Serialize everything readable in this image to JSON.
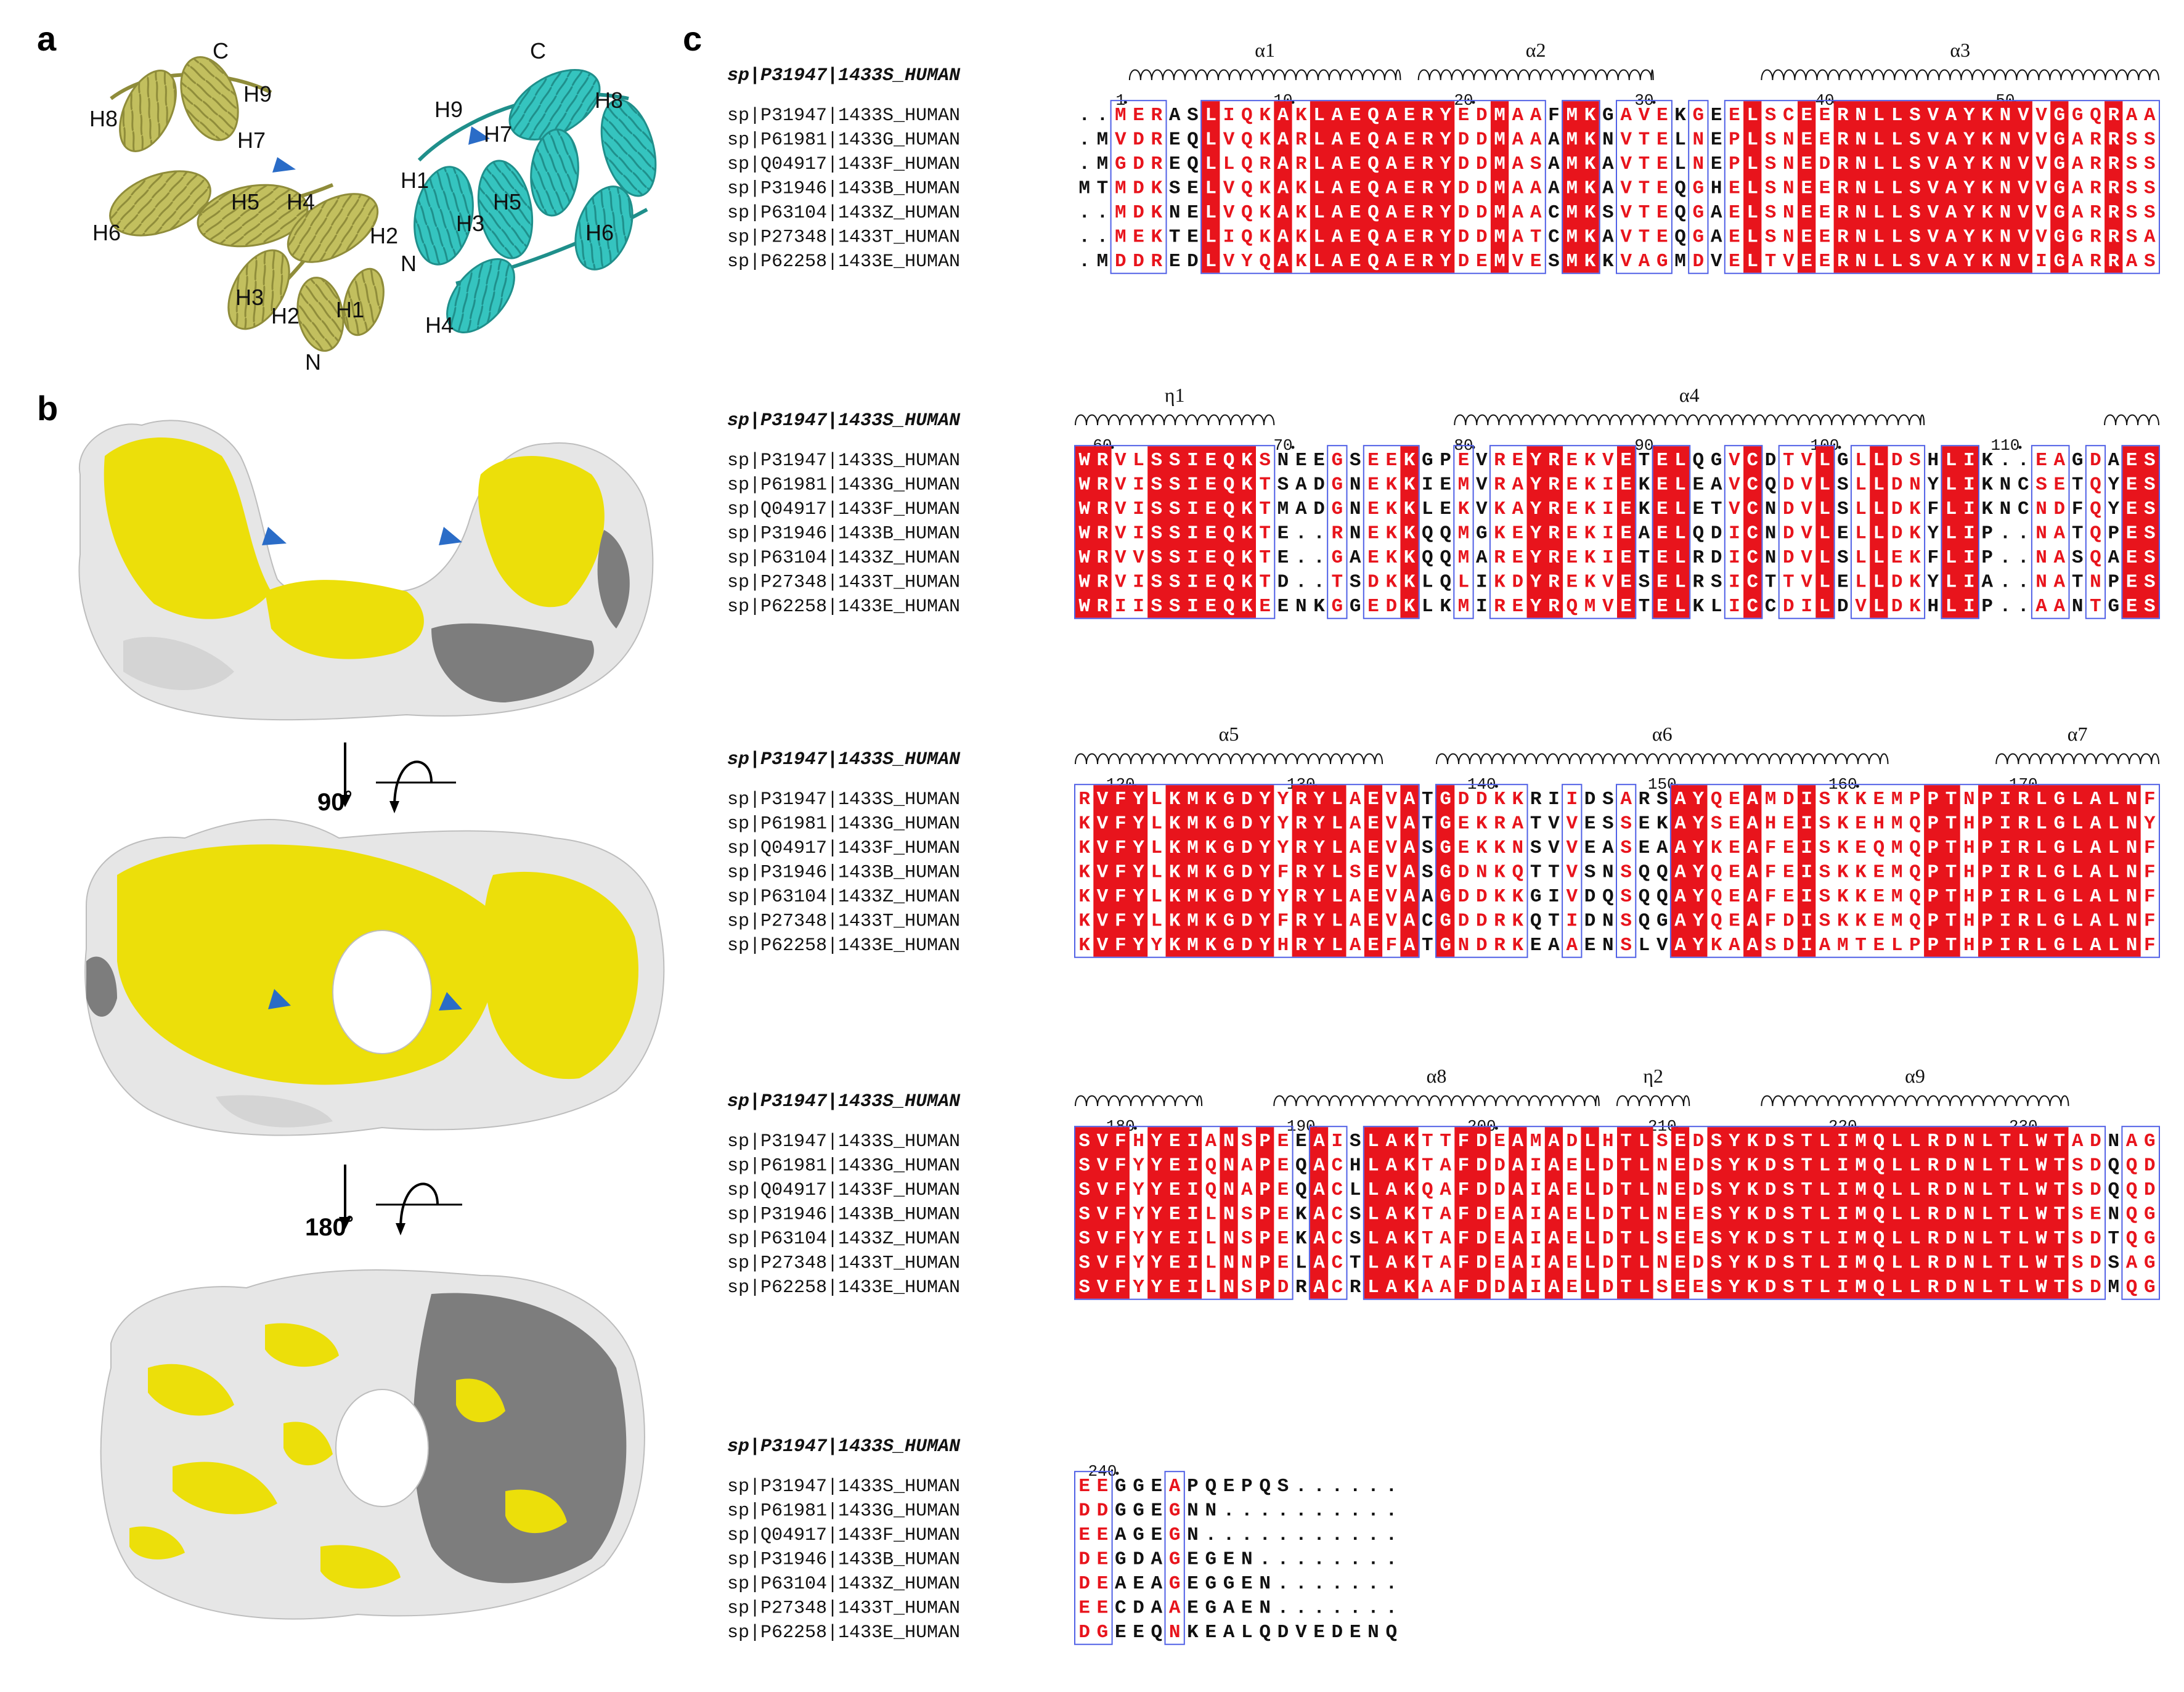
{
  "panels": {
    "a": "a",
    "b": "b",
    "c": "c"
  },
  "panel_a": {
    "left_labels": {
      "C": "C",
      "H9": "H9",
      "H8": "H8",
      "H7": "H7",
      "H6": "H6",
      "H5": "H5",
      "H4": "H4",
      "H3": "H3",
      "H2": "H2",
      "H1": "H1",
      "N": "N"
    },
    "right_labels": {
      "C": "C",
      "H9": "H9",
      "H8": "H8",
      "H7": "H7",
      "H1": "H1",
      "H5": "H5",
      "H3": "H3",
      "H2": "H2",
      "N": "N",
      "H6": "H6",
      "H4": "H4"
    },
    "colors": {
      "left": "#c2bf5e",
      "left_dark": "#8f8c3a",
      "right": "#35c4bf",
      "right_dark": "#1f8f8b",
      "arrow": "#2a6cc7"
    }
  },
  "panel_b": {
    "rotation1": "90˚",
    "rotation2": "180˚",
    "colors": {
      "yellow": "#ecdf0a",
      "light": "#e6e6e6",
      "dark": "#7d7d7d",
      "arrow": "#2a6cc7"
    }
  },
  "alignment": {
    "colors": {
      "identical_bg": "#e8141c",
      "similar_text": "#e8141c",
      "box": "#5060e6",
      "text": "#111111"
    },
    "blocks": [
      {
        "ref": "sp|P31947|1433S_HUMAN",
        "structure": [
          {
            "label": "α1",
            "type": "helix",
            "start": 3,
            "end": 17
          },
          {
            "label": "α2",
            "type": "helix",
            "start": 19,
            "end": 31
          },
          {
            "label": "α3",
            "type": "helix",
            "start": 38,
            "end": 59
          }
        ],
        "numbers": [
          {
            "label": "1",
            "col": 2
          },
          {
            "label": "10",
            "col": 11
          },
          {
            "label": "20",
            "col": 21
          },
          {
            "label": "30",
            "col": 31
          },
          {
            "label": "40",
            "col": 41
          },
          {
            "label": "50",
            "col": 51
          }
        ],
        "sequences": [
          {
            "name": "sp|P31947|1433S_HUMAN",
            "seq": "..MERASLIQKAKLAEQAERYEDMAAFMKGAVEKGEELSCEERNLLSVAYKNVVGGQRAA"
          },
          {
            "name": "sp|P61981|1433G_HUMAN",
            "seq": ".MVDREQLVQKARLAEQAERYDDMAAAMKNVTELNEPLSNEERNLLSVAYKNVVGARRSS"
          },
          {
            "name": "sp|Q04917|1433F_HUMAN",
            "seq": ".MGDREQLLQRARLAEQAERYDDMASAMKAVTELNEPLSNEDRNLLSVAYKNVVGARRSS"
          },
          {
            "name": "sp|P31946|1433B_HUMAN",
            "seq": "MTMDKSELVQKAKLAEQAERYDDMAAAMKAVTEQGHELSNEERNLLSVAYKNVVGARRSS"
          },
          {
            "name": "sp|P63104|1433Z_HUMAN",
            "seq": "..MDKNELVQKAKLAEQAERYDDMAACMKSVTEQGAELSNEERNLLSVAYKNVVGARRSS"
          },
          {
            "name": "sp|P27348|1433T_HUMAN",
            "seq": "..MEKTELIQKAKLAEQAERYDDMATCMKAVTEQGAELSNEERNLLSVAYKNVVGGRRSA"
          },
          {
            "name": "sp|P62258|1433E_HUMAN",
            "seq": ".MDDREDLVYQAKLAEQAERYDEMVESMKKVAGMDVELTVEERNLLSVAYKNVIGARRAS"
          }
        ]
      },
      {
        "ref": "sp|P31947|1433S_HUMAN",
        "structure": [
          {
            "label": "η1",
            "type": "helix",
            "start": 0,
            "end": 10
          },
          {
            "label": "α4",
            "type": "helix",
            "start": 21,
            "end": 46
          },
          {
            "label": "",
            "type": "helix",
            "start": 57,
            "end": 59
          }
        ],
        "numbers": [
          {
            "label": "60",
            "col": 1
          },
          {
            "label": "70",
            "col": 11
          },
          {
            "label": "80",
            "col": 21
          },
          {
            "label": "90",
            "col": 31
          },
          {
            "label": "100",
            "col": 41
          },
          {
            "label": "110",
            "col": 51
          }
        ],
        "sequences": [
          {
            "name": "sp|P31947|1433S_HUMAN",
            "seq": "WRVLSSIEQKSNEEGSEEKGPEVREYREKVETELQGVCDTVLGLLDSHLIK..EAGDAES"
          },
          {
            "name": "sp|P61981|1433G_HUMAN",
            "seq": "WRVISSIEQKTSADGNEKKIEMVRAYREKIEKELEAVCQDVLSLLDNYLIKNCSETQYES"
          },
          {
            "name": "sp|Q04917|1433F_HUMAN",
            "seq": "WRVISSIEQKTMADGNEKKLEKVKAYREKIEKELETVCNDVLSLLDKFLIKNCNDFQYES"
          },
          {
            "name": "sp|P31946|1433B_HUMAN",
            "seq": "WRVISSIEQKTE..RNEKKQQMGKEYREKIEAELQDICNDVLELLDKYLIP..NATQPES"
          },
          {
            "name": "sp|P63104|1433Z_HUMAN",
            "seq": "WRVVSSIEQKTE..GAEKKQQMAREYREKIETELRDICNDVLSLLEKFLIP..NASQAES"
          },
          {
            "name": "sp|P27348|1433T_HUMAN",
            "seq": "WRVISSIEQKTD..TSDKKLQLIKDYREKVESELRSICTTVLELLDKYLIA..NATNPES"
          },
          {
            "name": "sp|P62258|1433E_HUMAN",
            "seq": "WRIISSIEQKEENKGGEDKLKMIREYRQMVETELKLICCDILDVLDKHLIP..AANTGES"
          }
        ]
      },
      {
        "ref": "sp|P31947|1433S_HUMAN",
        "structure": [
          {
            "label": "α5",
            "type": "helix",
            "start": 0,
            "end": 16
          },
          {
            "label": "α6",
            "type": "helix",
            "start": 20,
            "end": 44
          },
          {
            "label": "α7",
            "type": "helix",
            "start": 51,
            "end": 59
          }
        ],
        "numbers": [
          {
            "label": "120",
            "col": 2
          },
          {
            "label": "130",
            "col": 12
          },
          {
            "label": "140",
            "col": 22
          },
          {
            "label": "150",
            "col": 32
          },
          {
            "label": "160",
            "col": 42
          },
          {
            "label": "170",
            "col": 52
          }
        ],
        "sequences": [
          {
            "name": "sp|P31947|1433S_HUMAN",
            "seq": "RVFYLKMKGDYYRYLAEVATGDDKKRIIDSARSAYQEAMDISKKEMPPTNPIRLGLALNF"
          },
          {
            "name": "sp|P61981|1433G_HUMAN",
            "seq": "KVFYLKMKGDYYRYLAEVATGEKRATVVESSEKAYSEAHEISKEHMQPTHPIRLGLALNY"
          },
          {
            "name": "sp|Q04917|1433F_HUMAN",
            "seq": "KVFYLKMKGDYYRYLAEVASGEKKNSVVEASEAAYKEAFEISKEQMQPTHPIRLGLALNF"
          },
          {
            "name": "sp|P31946|1433B_HUMAN",
            "seq": "KVFYLKMKGDYFRYLSEVASGDNKQTTVSNSQQAYQEAFEISKKEMQPTHPIRLGLALNF"
          },
          {
            "name": "sp|P63104|1433Z_HUMAN",
            "seq": "KVFYLKMKGDYYRYLAEVAAGDDKKGIVDQSQQAYQEAFEISKKEMQPTHPIRLGLALNF"
          },
          {
            "name": "sp|P27348|1433T_HUMAN",
            "seq": "KVFYLKMKGDYFRYLAEVACGDDRKQTIDNSQGAYQEAFDISKKEMQPTHPIRLGLALNF"
          },
          {
            "name": "sp|P62258|1433E_HUMAN",
            "seq": "KVFYYKMKGDYHRYLAEFATGNDRKEAAENSLVAYKAASDIAMTELPPTHPIRLGLALNF"
          }
        ]
      },
      {
        "ref": "sp|P31947|1433S_HUMAN",
        "structure": [
          {
            "label": "",
            "type": "helix",
            "start": 0,
            "end": 6
          },
          {
            "label": "α8",
            "type": "helix",
            "start": 11,
            "end": 28
          },
          {
            "label": "η2",
            "type": "helix",
            "start": 30,
            "end": 33
          },
          {
            "label": "α9",
            "type": "helix",
            "start": 38,
            "end": 54
          }
        ],
        "numbers": [
          {
            "label": "180",
            "col": 2
          },
          {
            "label": "190",
            "col": 12
          },
          {
            "label": "200",
            "col": 22
          },
          {
            "label": "210",
            "col": 32
          },
          {
            "label": "220",
            "col": 42
          },
          {
            "label": "230",
            "col": 52
          }
        ],
        "sequences": [
          {
            "name": "sp|P31947|1433S_HUMAN",
            "seq": "SVFHYEIANSPEEAISLAKTTFDEAMADLHTLSEDSYKDSTLIMQLLRDNLTLWTADNAG"
          },
          {
            "name": "sp|P61981|1433G_HUMAN",
            "seq": "SVFYYEIQNAPEQACHLAKTAFDDAIAELDTLNEDSYKDSTLIMQLLRDNLTLWTSDQQD"
          },
          {
            "name": "sp|Q04917|1433F_HUMAN",
            "seq": "SVFYYEIQNAPEQACLLAKQAFDDAIAELDTLNEDSYKDSTLIMQLLRDNLTLWTSDQQD"
          },
          {
            "name": "sp|P31946|1433B_HUMAN",
            "seq": "SVFYYEILNSPEKACSLAKTAFDEAIAELDTLNEESYKDSTLIMQLLRDNLTLWTSENQG"
          },
          {
            "name": "sp|P63104|1433Z_HUMAN",
            "seq": "SVFYYEILNSPEKACSLAKTAFDEAIAELDTLSEESYKDSTLIMQLLRDNLTLWTSDTQG"
          },
          {
            "name": "sp|P27348|1433T_HUMAN",
            "seq": "SVFYYEILNNPELACTLAKTAFDEAIAELDTLNEDSYKDSTLIMQLLRDNLTLWTSDSAG"
          },
          {
            "name": "sp|P62258|1433E_HUMAN",
            "seq": "SVFYYEILNSPDRACRLAKAAFDDAIAELDTLSEESYKDSTLIMQLLRDNLTLWTSDMQG"
          }
        ]
      },
      {
        "ref": "sp|P31947|1433S_HUMAN",
        "structure": [],
        "numbers": [
          {
            "label": "240",
            "col": 1
          }
        ],
        "sequences": [
          {
            "name": "sp|P31947|1433S_HUMAN",
            "seq": "EEGGEAPQEPQS......"
          },
          {
            "name": "sp|P61981|1433G_HUMAN",
            "seq": "DDGGEGNN.........."
          },
          {
            "name": "sp|Q04917|1433F_HUMAN",
            "seq": "EEAGEGN..........."
          },
          {
            "name": "sp|P31946|1433B_HUMAN",
            "seq": "DEGDAGEGEN........"
          },
          {
            "name": "sp|P63104|1433Z_HUMAN",
            "seq": "DEAEAGEGGEN......."
          },
          {
            "name": "sp|P27348|1433T_HUMAN",
            "seq": "EECDAAEGAEN......."
          },
          {
            "name": "sp|P62258|1433E_HUMAN",
            "seq": "DGEEQNKEALQDVEDENQ"
          }
        ]
      }
    ]
  }
}
